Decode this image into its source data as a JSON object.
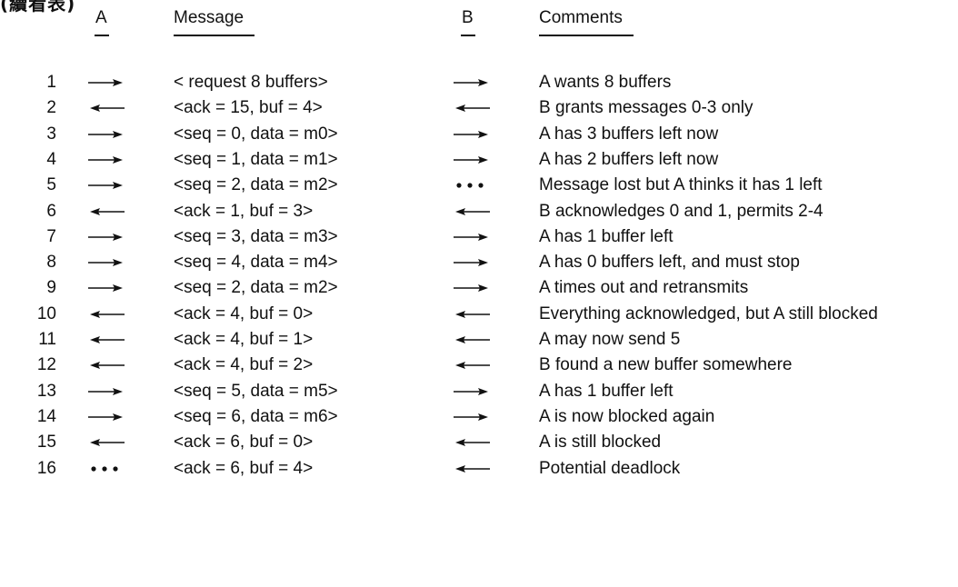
{
  "top_fragment": "(續看表)",
  "headers": {
    "a": "A",
    "message": "Message",
    "b": "B",
    "comments": "Comments"
  },
  "legend": {
    "right-arrow-icon": "message sent from A to B",
    "left-arrow-icon": "message sent from B to A",
    "lost-dots-icon": "message lost"
  },
  "rows": [
    {
      "n": "1",
      "a": "right",
      "msg": "< request 8 buffers>",
      "b": "right",
      "comment": "A wants 8 buffers"
    },
    {
      "n": "2",
      "a": "left",
      "msg": "<ack = 15, buf = 4>",
      "b": "left",
      "comment": "B grants messages 0-3 only"
    },
    {
      "n": "3",
      "a": "right",
      "msg": "<seq = 0, data = m0>",
      "b": "right",
      "comment": "A has 3 buffers left now"
    },
    {
      "n": "4",
      "a": "right",
      "msg": "<seq = 1, data = m1>",
      "b": "right",
      "comment": "A has 2 buffers left now"
    },
    {
      "n": "5",
      "a": "right",
      "msg": "<seq = 2, data = m2>",
      "b": "dots",
      "comment": "Message lost but A thinks it has 1 left"
    },
    {
      "n": "6",
      "a": "left",
      "msg": "<ack = 1, buf = 3>",
      "b": "left",
      "comment": "B acknowledges 0 and 1, permits 2-4"
    },
    {
      "n": "7",
      "a": "right",
      "msg": "<seq = 3, data = m3>",
      "b": "right",
      "comment": "A has 1 buffer left"
    },
    {
      "n": "8",
      "a": "right",
      "msg": "<seq = 4, data = m4>",
      "b": "right",
      "comment": "A has 0 buffers left, and must stop"
    },
    {
      "n": "9",
      "a": "right",
      "msg": "<seq = 2, data = m2>",
      "b": "right",
      "comment": "A times out and retransmits"
    },
    {
      "n": "10",
      "a": "left",
      "msg": "<ack = 4, buf = 0>",
      "b": "left",
      "comment": "Everything acknowledged, but A still blocked"
    },
    {
      "n": "11",
      "a": "left",
      "msg": "<ack = 4, buf = 1>",
      "b": "left",
      "comment": "A may now send 5"
    },
    {
      "n": "12",
      "a": "left",
      "msg": "<ack = 4, buf = 2>",
      "b": "left",
      "comment": "B found a new buffer somewhere"
    },
    {
      "n": "13",
      "a": "right",
      "msg": "<seq = 5, data = m5>",
      "b": "right",
      "comment": "A has 1 buffer left"
    },
    {
      "n": "14",
      "a": "right",
      "msg": "<seq = 6, data = m6>",
      "b": "right",
      "comment": "A is now blocked again"
    },
    {
      "n": "15",
      "a": "left",
      "msg": "<ack = 6, buf = 0>",
      "b": "left",
      "comment": "A is still blocked"
    },
    {
      "n": "16",
      "a": "dots",
      "msg": "<ack = 6, buf = 4>",
      "b": "left",
      "comment": "Potential deadlock"
    }
  ]
}
